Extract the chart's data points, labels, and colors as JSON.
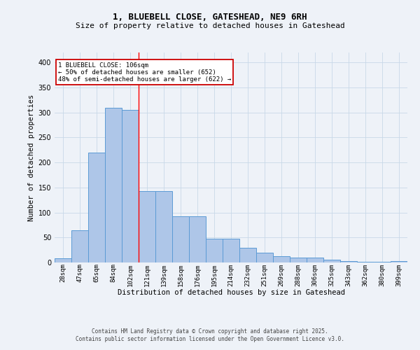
{
  "title1": "1, BLUEBELL CLOSE, GATESHEAD, NE9 6RH",
  "title2": "Size of property relative to detached houses in Gateshead",
  "xlabel": "Distribution of detached houses by size in Gateshead",
  "ylabel": "Number of detached properties",
  "categories": [
    "28sqm",
    "47sqm",
    "65sqm",
    "84sqm",
    "102sqm",
    "121sqm",
    "139sqm",
    "158sqm",
    "176sqm",
    "195sqm",
    "214sqm",
    "232sqm",
    "251sqm",
    "269sqm",
    "288sqm",
    "306sqm",
    "325sqm",
    "343sqm",
    "362sqm",
    "380sqm",
    "399sqm"
  ],
  "values": [
    8,
    65,
    220,
    310,
    305,
    143,
    143,
    93,
    92,
    48,
    48,
    30,
    20,
    13,
    10,
    10,
    5,
    3,
    2,
    1,
    3
  ],
  "bar_color": "#aec6e8",
  "bar_edge_color": "#5b9bd5",
  "grid_color": "#c8d8e8",
  "bg_color": "#eef2f8",
  "annotation_text": "1 BLUEBELL CLOSE: 106sqm\n← 50% of detached houses are smaller (652)\n48% of semi-detached houses are larger (622) →",
  "annotation_box_color": "#ffffff",
  "annotation_box_edge": "#cc0000",
  "footer1": "Contains HM Land Registry data © Crown copyright and database right 2025.",
  "footer2": "Contains public sector information licensed under the Open Government Licence v3.0.",
  "ylim": [
    0,
    420
  ],
  "yticks": [
    0,
    50,
    100,
    150,
    200,
    250,
    300,
    350,
    400
  ]
}
